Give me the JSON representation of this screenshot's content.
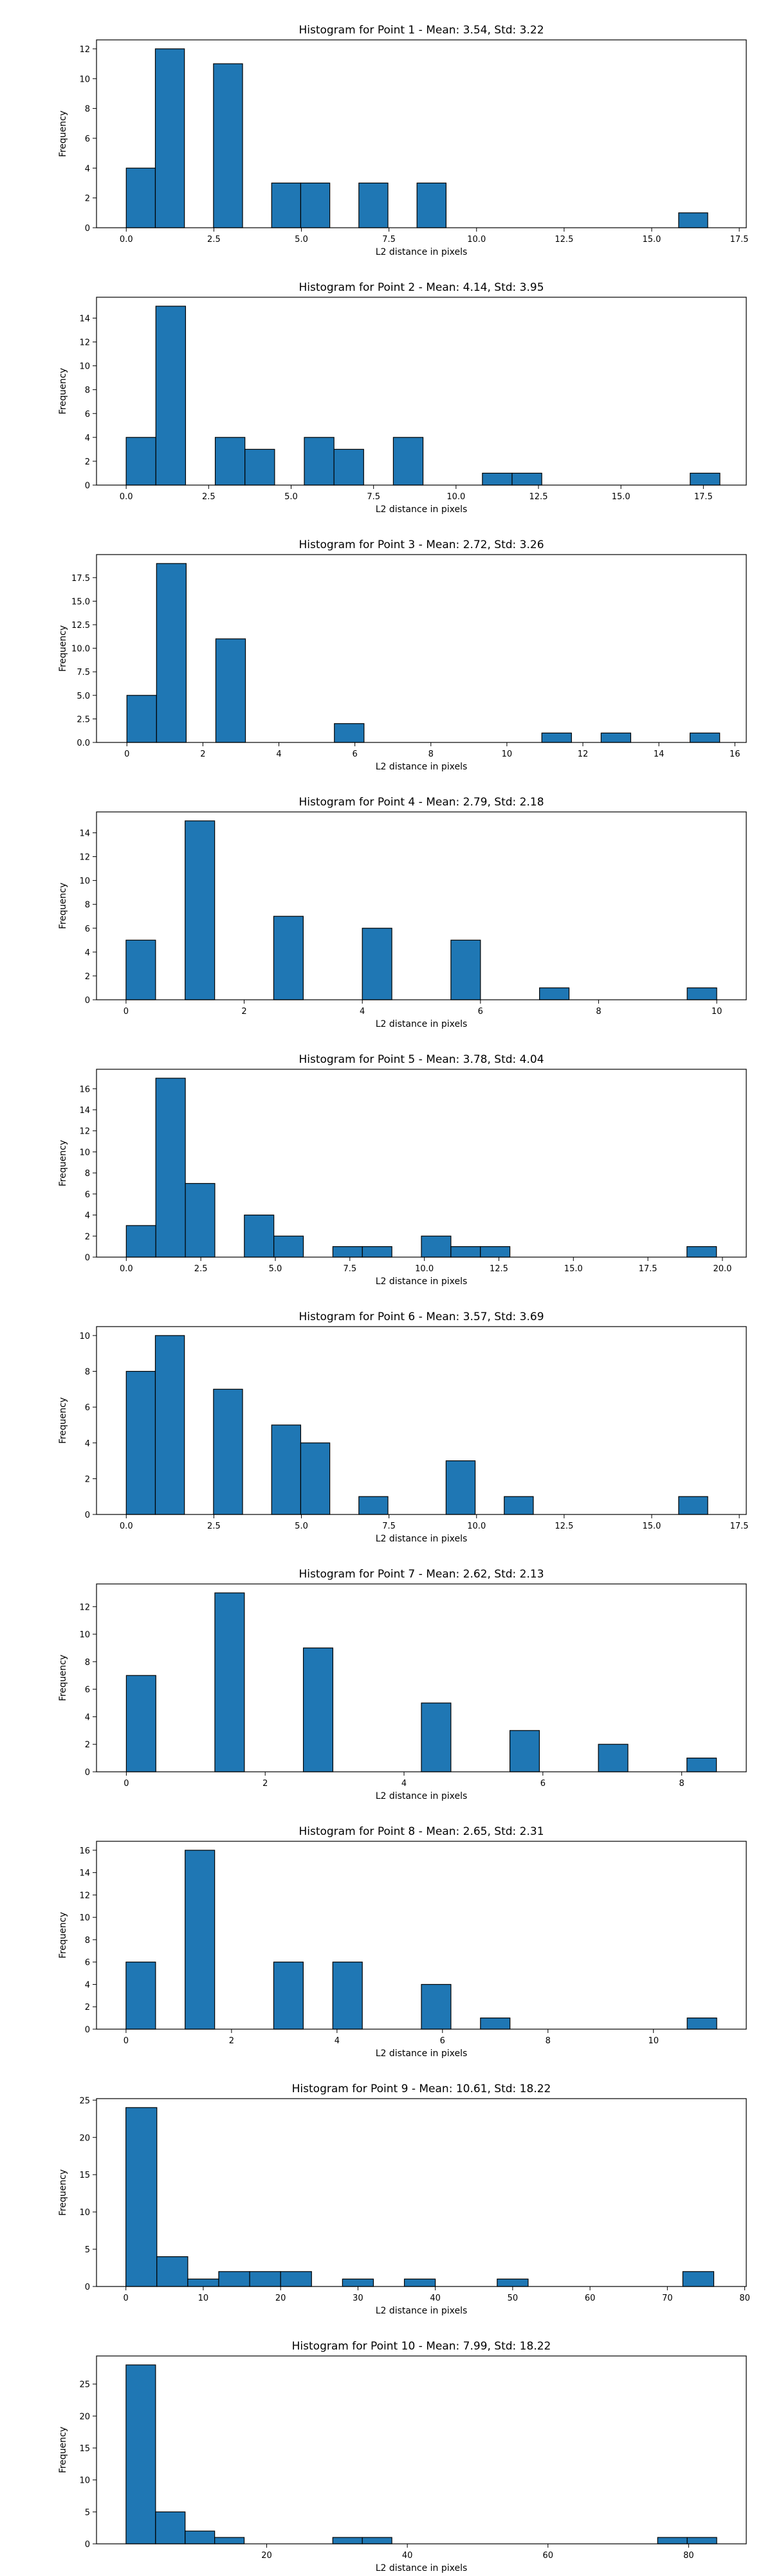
{
  "chart_data": [
    {
      "type": "bar",
      "title": "Histogram for Point 1 - Mean: 3.54, Std: 3.22",
      "xlabel": "L2 distance in pixels",
      "ylabel": "Frequency",
      "xlim": [
        -0.85,
        17.7
      ],
      "ylim": [
        0,
        12.6
      ],
      "xticks": [
        0.0,
        2.5,
        5.0,
        7.5,
        10.0,
        12.5,
        15.0,
        17.5
      ],
      "xtick_labels": [
        "0.0",
        "2.5",
        "5.0",
        "7.5",
        "10.0",
        "12.5",
        "15.0",
        "17.5"
      ],
      "yticks": [
        0,
        2,
        4,
        6,
        8,
        10,
        12
      ],
      "ytick_labels": [
        "0",
        "2",
        "4",
        "6",
        "8",
        "10",
        "12"
      ],
      "bins": [
        [
          0.0,
          0.83,
          4
        ],
        [
          0.83,
          1.66,
          12
        ],
        [
          2.49,
          3.32,
          11
        ],
        [
          4.15,
          4.98,
          3
        ],
        [
          4.98,
          5.81,
          3
        ],
        [
          6.64,
          7.47,
          3
        ],
        [
          8.3,
          9.13,
          3
        ],
        [
          15.77,
          16.6,
          1
        ]
      ]
    },
    {
      "type": "bar",
      "title": "Histogram for Point 2 - Mean: 4.14, Std: 3.95",
      "xlabel": "L2 distance in pixels",
      "ylabel": "Frequency",
      "xlim": [
        -0.9,
        18.8
      ],
      "ylim": [
        0,
        15.75
      ],
      "xticks": [
        0.0,
        2.5,
        5.0,
        7.5,
        10.0,
        12.5,
        15.0,
        17.5
      ],
      "xtick_labels": [
        "0.0",
        "2.5",
        "5.0",
        "7.5",
        "10.0",
        "12.5",
        "15.0",
        "17.5"
      ],
      "yticks": [
        0,
        2,
        4,
        6,
        8,
        10,
        12,
        14
      ],
      "ytick_labels": [
        "0",
        "2",
        "4",
        "6",
        "8",
        "10",
        "12",
        "14"
      ],
      "bins": [
        [
          0.0,
          0.9,
          4
        ],
        [
          0.9,
          1.8,
          15
        ],
        [
          2.7,
          3.6,
          4
        ],
        [
          3.6,
          4.5,
          3
        ],
        [
          5.4,
          6.3,
          4
        ],
        [
          6.3,
          7.2,
          3
        ],
        [
          8.1,
          9.0,
          4
        ],
        [
          10.8,
          11.7,
          1
        ],
        [
          11.7,
          12.6,
          1
        ],
        [
          17.1,
          18.0,
          1
        ]
      ]
    },
    {
      "type": "bar",
      "title": "Histogram for Point 3 - Mean: 2.72, Std: 3.26",
      "xlabel": "L2 distance in pixels",
      "ylabel": "Frequency",
      "xlim": [
        -0.8,
        16.3
      ],
      "ylim": [
        0,
        19.95
      ],
      "xticks": [
        0,
        2,
        4,
        6,
        8,
        10,
        12,
        14,
        16
      ],
      "xtick_labels": [
        "0",
        "2",
        "4",
        "6",
        "8",
        "10",
        "12",
        "14",
        "16"
      ],
      "yticks": [
        0,
        2.5,
        5.0,
        7.5,
        10.0,
        12.5,
        15.0,
        17.5
      ],
      "ytick_labels": [
        "0.0",
        "2.5",
        "5.0",
        "7.5",
        "10.0",
        "12.5",
        "15.0",
        "17.5"
      ],
      "bins": [
        [
          0.0,
          0.78,
          5
        ],
        [
          0.78,
          1.56,
          19
        ],
        [
          2.34,
          3.12,
          11
        ],
        [
          5.46,
          6.24,
          2
        ],
        [
          10.92,
          11.7,
          1
        ],
        [
          12.48,
          13.26,
          1
        ],
        [
          14.82,
          15.6,
          1
        ]
      ]
    },
    {
      "type": "bar",
      "title": "Histogram for Point 4 - Mean: 2.79, Std: 2.18",
      "xlabel": "L2 distance in pixels",
      "ylabel": "Frequency",
      "xlim": [
        -0.5,
        10.5
      ],
      "ylim": [
        0,
        15.75
      ],
      "xticks": [
        0,
        2,
        4,
        6,
        8,
        10
      ],
      "xtick_labels": [
        "0",
        "2",
        "4",
        "6",
        "8",
        "10"
      ],
      "yticks": [
        0,
        2,
        4,
        6,
        8,
        10,
        12,
        14
      ],
      "ytick_labels": [
        "0",
        "2",
        "4",
        "6",
        "8",
        "10",
        "12",
        "14"
      ],
      "bins": [
        [
          0.0,
          0.5,
          5
        ],
        [
          1.0,
          1.5,
          15
        ],
        [
          2.5,
          3.0,
          7
        ],
        [
          4.0,
          4.5,
          6
        ],
        [
          5.5,
          6.0,
          5
        ],
        [
          7.0,
          7.5,
          1
        ],
        [
          9.5,
          10.0,
          1
        ]
      ]
    },
    {
      "type": "bar",
      "title": "Histogram for Point 5 - Mean: 3.78, Std: 4.04",
      "xlabel": "L2 distance in pixels",
      "ylabel": "Frequency",
      "xlim": [
        -1.0,
        20.8
      ],
      "ylim": [
        0,
        17.85
      ],
      "xticks": [
        0.0,
        2.5,
        5.0,
        7.5,
        10.0,
        12.5,
        15.0,
        17.5,
        20.0
      ],
      "xtick_labels": [
        "0.0",
        "2.5",
        "5.0",
        "7.5",
        "10.0",
        "12.5",
        "15.0",
        "17.5",
        "20.0"
      ],
      "yticks": [
        0,
        2,
        4,
        6,
        8,
        10,
        12,
        14,
        16
      ],
      "ytick_labels": [
        "0",
        "2",
        "4",
        "6",
        "8",
        "10",
        "12",
        "14",
        "16"
      ],
      "bins": [
        [
          0.0,
          0.99,
          3
        ],
        [
          0.99,
          1.98,
          17
        ],
        [
          1.98,
          2.97,
          7
        ],
        [
          3.96,
          4.95,
          4
        ],
        [
          4.95,
          5.94,
          2
        ],
        [
          6.93,
          7.92,
          1
        ],
        [
          7.92,
          8.91,
          1
        ],
        [
          9.9,
          10.89,
          2
        ],
        [
          10.89,
          11.88,
          1
        ],
        [
          11.88,
          12.87,
          1
        ],
        [
          18.81,
          19.8,
          1
        ]
      ]
    },
    {
      "type": "bar",
      "title": "Histogram for Point 6 - Mean: 3.57, Std: 3.69",
      "xlabel": "L2 distance in pixels",
      "ylabel": "Frequency",
      "xlim": [
        -0.85,
        17.7
      ],
      "ylim": [
        0,
        10.5
      ],
      "xticks": [
        0.0,
        2.5,
        5.0,
        7.5,
        10.0,
        12.5,
        15.0,
        17.5
      ],
      "xtick_labels": [
        "0.0",
        "2.5",
        "5.0",
        "7.5",
        "10.0",
        "12.5",
        "15.0",
        "17.5"
      ],
      "yticks": [
        0,
        2,
        4,
        6,
        8,
        10
      ],
      "ytick_labels": [
        "0",
        "2",
        "4",
        "6",
        "8",
        "10"
      ],
      "bins": [
        [
          0.0,
          0.83,
          8
        ],
        [
          0.83,
          1.66,
          10
        ],
        [
          2.49,
          3.32,
          7
        ],
        [
          4.15,
          4.98,
          5
        ],
        [
          4.98,
          5.81,
          4
        ],
        [
          6.64,
          7.47,
          1
        ],
        [
          9.13,
          9.96,
          3
        ],
        [
          10.79,
          11.62,
          1
        ],
        [
          15.77,
          16.6,
          1
        ]
      ]
    },
    {
      "type": "bar",
      "title": "Histogram for Point 7 - Mean: 2.62, Std: 2.13",
      "xlabel": "L2 distance in pixels",
      "ylabel": "Frequency",
      "xlim": [
        -0.43,
        8.93
      ],
      "ylim": [
        0,
        13.65
      ],
      "xticks": [
        0,
        2,
        4,
        6,
        8
      ],
      "xtick_labels": [
        "0",
        "2",
        "4",
        "6",
        "8"
      ],
      "yticks": [
        0,
        2,
        4,
        6,
        8,
        10,
        12
      ],
      "ytick_labels": [
        "0",
        "2",
        "4",
        "6",
        "8",
        "10",
        "12"
      ],
      "bins": [
        [
          0.0,
          0.425,
          7
        ],
        [
          1.275,
          1.7,
          13
        ],
        [
          2.55,
          2.975,
          9
        ],
        [
          4.25,
          4.675,
          5
        ],
        [
          5.525,
          5.95,
          3
        ],
        [
          6.8,
          7.225,
          2
        ],
        [
          8.075,
          8.5,
          1
        ]
      ]
    },
    {
      "type": "bar",
      "title": "Histogram for Point 8 - Mean: 2.65, Std: 2.31",
      "xlabel": "L2 distance in pixels",
      "ylabel": "Frequency",
      "xlim": [
        -0.56,
        11.76
      ],
      "ylim": [
        0,
        16.8
      ],
      "xticks": [
        0,
        2,
        4,
        6,
        8,
        10
      ],
      "xtick_labels": [
        "0",
        "2",
        "4",
        "6",
        "8",
        "10"
      ],
      "yticks": [
        0,
        2,
        4,
        6,
        8,
        10,
        12,
        14,
        16
      ],
      "ytick_labels": [
        "0",
        "2",
        "4",
        "6",
        "8",
        "10",
        "12",
        "14",
        "16"
      ],
      "bins": [
        [
          0.0,
          0.56,
          6
        ],
        [
          1.12,
          1.68,
          16
        ],
        [
          2.8,
          3.36,
          6
        ],
        [
          3.92,
          4.48,
          6
        ],
        [
          5.6,
          6.16,
          4
        ],
        [
          6.72,
          7.28,
          1
        ],
        [
          10.64,
          11.2,
          1
        ]
      ]
    },
    {
      "type": "bar",
      "title": "Histogram for Point 9 - Mean: 10.61, Std: 18.22",
      "xlabel": "L2 distance in pixels",
      "ylabel": "Frequency",
      "xlim": [
        -3.8,
        80.2
      ],
      "ylim": [
        0,
        25.2
      ],
      "xticks": [
        0,
        10,
        20,
        30,
        40,
        50,
        60,
        70,
        80
      ],
      "xtick_labels": [
        "0",
        "10",
        "20",
        "30",
        "40",
        "50",
        "60",
        "70",
        "80"
      ],
      "yticks": [
        0,
        5,
        10,
        15,
        20,
        25
      ],
      "ytick_labels": [
        "0",
        "5",
        "10",
        "15",
        "20",
        "25"
      ],
      "bins": [
        [
          0.0,
          4.0,
          24
        ],
        [
          4.0,
          8.0,
          4
        ],
        [
          8.0,
          12.0,
          1
        ],
        [
          12.0,
          16.0,
          2
        ],
        [
          16.0,
          20.0,
          2
        ],
        [
          20.0,
          24.0,
          2
        ],
        [
          28.0,
          32.0,
          1
        ],
        [
          36.0,
          40.0,
          1
        ],
        [
          48.0,
          52.0,
          1
        ],
        [
          72.0,
          76.0,
          2
        ]
      ]
    },
    {
      "type": "bar",
      "title": "Histogram for Point 10 - Mean: 7.99, Std: 18.22",
      "xlabel": "L2 distance in pixels",
      "ylabel": "Frequency",
      "xlim": [
        -4.2,
        88.2
      ],
      "ylim": [
        0,
        29.4
      ],
      "xticks": [
        20,
        40,
        60,
        80
      ],
      "xtick_labels": [
        "20",
        "40",
        "60",
        "80"
      ],
      "yticks": [
        0,
        5,
        10,
        15,
        20,
        25
      ],
      "ytick_labels": [
        "0",
        "5",
        "10",
        "15",
        "20",
        "25"
      ],
      "bins": [
        [
          0.0,
          4.2,
          28
        ],
        [
          4.2,
          8.4,
          5
        ],
        [
          8.4,
          12.6,
          2
        ],
        [
          12.6,
          16.8,
          1
        ],
        [
          29.4,
          33.6,
          1
        ],
        [
          33.6,
          37.8,
          1
        ],
        [
          75.6,
          79.8,
          1
        ],
        [
          79.8,
          84.0,
          1
        ]
      ]
    }
  ],
  "colors": {
    "bar_fill": "#1f77b4",
    "bar_edge": "#000000"
  }
}
